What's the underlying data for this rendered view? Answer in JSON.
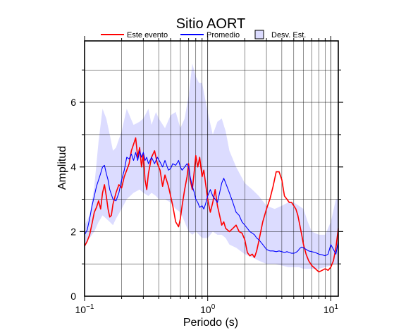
{
  "chart_data": {
    "type": "line",
    "title": "Sitio AORT",
    "xlabel": "Periodo (s)",
    "ylabel": "Amplitud",
    "x_scale": "log",
    "xlim": [
      0.1,
      11.5
    ],
    "ylim": [
      0,
      7.9
    ],
    "x_ticks": [
      {
        "base": "10",
        "exp": "−1",
        "value": 0.1
      },
      {
        "base": "10",
        "exp": "0",
        "value": 1
      },
      {
        "base": "10",
        "exp": "1",
        "value": 10
      }
    ],
    "y_ticks": [
      {
        "label": "0",
        "value": 0
      },
      {
        "label": "2",
        "value": 2
      },
      {
        "label": "4",
        "value": 4
      },
      {
        "label": "6",
        "value": 6
      }
    ],
    "grid": true,
    "legend_position": "top",
    "legend": [
      {
        "label": "Este evento",
        "kind": "line",
        "color": "#ff0000"
      },
      {
        "label": "Promedio",
        "kind": "line",
        "color": "#0000ff"
      },
      {
        "label": "Desv. Est.",
        "kind": "box",
        "color": "#dcdcff"
      }
    ],
    "series": [
      {
        "name": "Este evento",
        "color": "#ff0000",
        "points": [
          [
            0.1,
            1.55
          ],
          [
            0.105,
            1.7
          ],
          [
            0.11,
            1.9
          ],
          [
            0.115,
            2.25
          ],
          [
            0.12,
            2.6
          ],
          [
            0.125,
            2.75
          ],
          [
            0.13,
            2.95
          ],
          [
            0.135,
            2.7
          ],
          [
            0.14,
            3.2
          ],
          [
            0.145,
            3.45
          ],
          [
            0.15,
            3.1
          ],
          [
            0.155,
            2.7
          ],
          [
            0.16,
            2.45
          ],
          [
            0.165,
            2.5
          ],
          [
            0.17,
            2.85
          ],
          [
            0.18,
            3.2
          ],
          [
            0.19,
            3.45
          ],
          [
            0.2,
            3.35
          ],
          [
            0.21,
            3.7
          ],
          [
            0.22,
            3.9
          ],
          [
            0.23,
            4.1
          ],
          [
            0.24,
            4.5
          ],
          [
            0.25,
            4.7
          ],
          [
            0.26,
            4.9
          ],
          [
            0.27,
            4.3
          ],
          [
            0.28,
            4.6
          ],
          [
            0.29,
            4.0
          ],
          [
            0.3,
            4.4
          ],
          [
            0.31,
            3.6
          ],
          [
            0.32,
            3.3
          ],
          [
            0.33,
            3.8
          ],
          [
            0.35,
            4.3
          ],
          [
            0.37,
            4.5
          ],
          [
            0.39,
            4.1
          ],
          [
            0.41,
            3.9
          ],
          [
            0.43,
            3.4
          ],
          [
            0.45,
            3.75
          ],
          [
            0.48,
            3.4
          ],
          [
            0.5,
            3.1
          ],
          [
            0.52,
            2.8
          ],
          [
            0.55,
            2.3
          ],
          [
            0.58,
            2.15
          ],
          [
            0.6,
            2.4
          ],
          [
            0.62,
            2.8
          ],
          [
            0.65,
            3.3
          ],
          [
            0.68,
            3.7
          ],
          [
            0.7,
            4.1
          ],
          [
            0.72,
            3.6
          ],
          [
            0.75,
            3.3
          ],
          [
            0.78,
            3.9
          ],
          [
            0.8,
            4.35
          ],
          [
            0.83,
            4.0
          ],
          [
            0.86,
            4.3
          ],
          [
            0.9,
            3.7
          ],
          [
            0.93,
            3.9
          ],
          [
            0.96,
            3.5
          ],
          [
            1.0,
            3.0
          ],
          [
            1.05,
            2.6
          ],
          [
            1.1,
            2.9
          ],
          [
            1.15,
            3.3
          ],
          [
            1.2,
            2.8
          ],
          [
            1.25,
            2.5
          ],
          [
            1.3,
            2.2
          ],
          [
            1.35,
            2.3
          ],
          [
            1.4,
            2.1
          ],
          [
            1.5,
            2.0
          ],
          [
            1.6,
            2.1
          ],
          [
            1.7,
            2.2
          ],
          [
            1.8,
            2.0
          ],
          [
            1.9,
            1.95
          ],
          [
            2.0,
            1.75
          ],
          [
            2.1,
            1.35
          ],
          [
            2.2,
            1.25
          ],
          [
            2.3,
            1.3
          ],
          [
            2.4,
            1.2
          ],
          [
            2.5,
            1.4
          ],
          [
            2.6,
            1.7
          ],
          [
            2.8,
            2.3
          ],
          [
            3.0,
            2.7
          ],
          [
            3.2,
            3.0
          ],
          [
            3.4,
            3.4
          ],
          [
            3.6,
            3.85
          ],
          [
            3.8,
            3.85
          ],
          [
            4.0,
            3.6
          ],
          [
            4.2,
            3.1
          ],
          [
            4.4,
            3.0
          ],
          [
            4.6,
            2.9
          ],
          [
            4.8,
            2.9
          ],
          [
            5.0,
            2.8
          ],
          [
            5.2,
            2.7
          ],
          [
            5.4,
            2.5
          ],
          [
            5.6,
            2.2
          ],
          [
            5.8,
            1.9
          ],
          [
            6.0,
            1.6
          ],
          [
            6.3,
            1.3
          ],
          [
            6.6,
            1.1
          ],
          [
            7.0,
            0.95
          ],
          [
            7.5,
            0.85
          ],
          [
            8.0,
            0.75
          ],
          [
            8.5,
            0.8
          ],
          [
            9.0,
            0.85
          ],
          [
            9.5,
            0.8
          ],
          [
            10.0,
            0.9
          ],
          [
            10.5,
            1.1
          ],
          [
            11.0,
            1.5
          ],
          [
            11.5,
            2.1
          ]
        ]
      },
      {
        "name": "Promedio",
        "color": "#0000ff",
        "points": [
          [
            0.1,
            1.9
          ],
          [
            0.105,
            2.05
          ],
          [
            0.11,
            2.4
          ],
          [
            0.115,
            2.8
          ],
          [
            0.12,
            3.1
          ],
          [
            0.125,
            3.4
          ],
          [
            0.13,
            3.6
          ],
          [
            0.135,
            3.8
          ],
          [
            0.14,
            4.0
          ],
          [
            0.145,
            4.05
          ],
          [
            0.15,
            3.8
          ],
          [
            0.155,
            3.6
          ],
          [
            0.16,
            3.3
          ],
          [
            0.17,
            3.0
          ],
          [
            0.18,
            2.95
          ],
          [
            0.19,
            3.2
          ],
          [
            0.2,
            3.6
          ],
          [
            0.21,
            3.9
          ],
          [
            0.22,
            4.3
          ],
          [
            0.23,
            4.25
          ],
          [
            0.24,
            4.4
          ],
          [
            0.25,
            4.2
          ],
          [
            0.26,
            4.45
          ],
          [
            0.27,
            4.2
          ],
          [
            0.28,
            4.5
          ],
          [
            0.29,
            4.3
          ],
          [
            0.3,
            4.45
          ],
          [
            0.31,
            4.2
          ],
          [
            0.32,
            4.3
          ],
          [
            0.33,
            4.1
          ],
          [
            0.35,
            4.3
          ],
          [
            0.37,
            4.1
          ],
          [
            0.39,
            4.3
          ],
          [
            0.41,
            4.15
          ],
          [
            0.43,
            4.0
          ],
          [
            0.45,
            4.2
          ],
          [
            0.48,
            3.9
          ],
          [
            0.5,
            3.95
          ],
          [
            0.52,
            4.1
          ],
          [
            0.55,
            4.05
          ],
          [
            0.58,
            4.2
          ],
          [
            0.6,
            4.0
          ],
          [
            0.62,
            3.9
          ],
          [
            0.65,
            4.0
          ],
          [
            0.68,
            4.1
          ],
          [
            0.7,
            4.0
          ],
          [
            0.72,
            3.7
          ],
          [
            0.75,
            3.4
          ],
          [
            0.78,
            3.2
          ],
          [
            0.8,
            3.0
          ],
          [
            0.83,
            2.9
          ],
          [
            0.86,
            2.75
          ],
          [
            0.9,
            2.8
          ],
          [
            0.93,
            2.7
          ],
          [
            0.96,
            2.85
          ],
          [
            1.0,
            3.1
          ],
          [
            1.05,
            3.3
          ],
          [
            1.1,
            3.1
          ],
          [
            1.15,
            3.0
          ],
          [
            1.2,
            2.9
          ],
          [
            1.25,
            3.2
          ],
          [
            1.3,
            3.5
          ],
          [
            1.35,
            3.65
          ],
          [
            1.4,
            3.5
          ],
          [
            1.5,
            3.2
          ],
          [
            1.6,
            2.9
          ],
          [
            1.7,
            2.6
          ],
          [
            1.8,
            2.5
          ],
          [
            1.9,
            2.3
          ],
          [
            2.0,
            2.2
          ],
          [
            2.1,
            2.1
          ],
          [
            2.2,
            2.0
          ],
          [
            2.3,
            1.95
          ],
          [
            2.4,
            1.9
          ],
          [
            2.5,
            1.8
          ],
          [
            2.6,
            1.75
          ],
          [
            2.8,
            1.6
          ],
          [
            3.0,
            1.45
          ],
          [
            3.2,
            1.4
          ],
          [
            3.4,
            1.4
          ],
          [
            3.6,
            1.38
          ],
          [
            3.8,
            1.4
          ],
          [
            4.0,
            1.38
          ],
          [
            4.2,
            1.35
          ],
          [
            4.4,
            1.38
          ],
          [
            4.6,
            1.35
          ],
          [
            4.8,
            1.33
          ],
          [
            5.0,
            1.33
          ],
          [
            5.2,
            1.35
          ],
          [
            5.4,
            1.4
          ],
          [
            5.6,
            1.48
          ],
          [
            5.8,
            1.52
          ],
          [
            6.0,
            1.5
          ],
          [
            6.3,
            1.45
          ],
          [
            6.6,
            1.4
          ],
          [
            7.0,
            1.38
          ],
          [
            7.5,
            1.35
          ],
          [
            8.0,
            1.3
          ],
          [
            8.5,
            1.28
          ],
          [
            9.0,
            1.25
          ],
          [
            9.5,
            1.3
          ],
          [
            10.0,
            1.6
          ],
          [
            10.5,
            1.45
          ],
          [
            11.0,
            1.3
          ],
          [
            11.5,
            1.7
          ]
        ]
      }
    ],
    "band": {
      "name": "Desv. Est.",
      "color": "#dcdcff",
      "upper": [
        [
          0.1,
          2.2
        ],
        [
          0.11,
          2.5
        ],
        [
          0.12,
          3.4
        ],
        [
          0.13,
          4.8
        ],
        [
          0.14,
          5.8
        ],
        [
          0.15,
          5.5
        ],
        [
          0.16,
          5.0
        ],
        [
          0.17,
          4.5
        ],
        [
          0.18,
          4.6
        ],
        [
          0.2,
          5.1
        ],
        [
          0.22,
          5.8
        ],
        [
          0.25,
          5.3
        ],
        [
          0.28,
          5.4
        ],
        [
          0.3,
          5.5
        ],
        [
          0.33,
          5.8
        ],
        [
          0.35,
          5.3
        ],
        [
          0.38,
          5.7
        ],
        [
          0.4,
          5.5
        ],
        [
          0.45,
          5.2
        ],
        [
          0.5,
          5.6
        ],
        [
          0.55,
          5.7
        ],
        [
          0.6,
          5.2
        ],
        [
          0.65,
          5.5
        ],
        [
          0.7,
          6.2
        ],
        [
          0.75,
          7.2
        ],
        [
          0.8,
          6.8
        ],
        [
          0.85,
          6.6
        ],
        [
          0.9,
          6.6
        ],
        [
          1.0,
          5.7
        ],
        [
          1.1,
          5.0
        ],
        [
          1.2,
          5.4
        ],
        [
          1.3,
          5.5
        ],
        [
          1.4,
          5.1
        ],
        [
          1.5,
          4.5
        ],
        [
          1.7,
          4.0
        ],
        [
          2.0,
          3.5
        ],
        [
          2.3,
          3.3
        ],
        [
          2.6,
          3.1
        ],
        [
          3.0,
          2.8
        ],
        [
          3.5,
          2.7
        ],
        [
          4.0,
          2.8
        ],
        [
          4.5,
          2.9
        ],
        [
          5.0,
          2.9
        ],
        [
          5.5,
          2.8
        ],
        [
          6.0,
          2.7
        ],
        [
          6.5,
          2.3
        ],
        [
          7.0,
          2.0
        ],
        [
          8.0,
          1.9
        ],
        [
          9.0,
          1.9
        ],
        [
          10.0,
          2.3
        ],
        [
          11.0,
          3.0
        ],
        [
          11.5,
          3.0
        ]
      ],
      "lower": [
        [
          0.1,
          1.6
        ],
        [
          0.11,
          1.8
        ],
        [
          0.12,
          2.0
        ],
        [
          0.13,
          2.3
        ],
        [
          0.14,
          2.5
        ],
        [
          0.15,
          2.4
        ],
        [
          0.16,
          2.3
        ],
        [
          0.17,
          2.2
        ],
        [
          0.18,
          2.4
        ],
        [
          0.2,
          2.7
        ],
        [
          0.22,
          3.0
        ],
        [
          0.25,
          3.2
        ],
        [
          0.28,
          3.3
        ],
        [
          0.3,
          3.2
        ],
        [
          0.33,
          3.1
        ],
        [
          0.35,
          3.2
        ],
        [
          0.38,
          3.1
        ],
        [
          0.4,
          3.0
        ],
        [
          0.45,
          3.0
        ],
        [
          0.5,
          2.9
        ],
        [
          0.55,
          2.7
        ],
        [
          0.6,
          2.6
        ],
        [
          0.65,
          2.3
        ],
        [
          0.7,
          2.0
        ],
        [
          0.75,
          1.9
        ],
        [
          0.8,
          2.0
        ],
        [
          0.85,
          1.9
        ],
        [
          0.9,
          1.8
        ],
        [
          1.0,
          1.8
        ],
        [
          1.1,
          2.0
        ],
        [
          1.2,
          1.9
        ],
        [
          1.3,
          1.9
        ],
        [
          1.4,
          1.8
        ],
        [
          1.5,
          1.6
        ],
        [
          1.7,
          1.5
        ],
        [
          2.0,
          1.3
        ],
        [
          2.3,
          1.2
        ],
        [
          2.6,
          1.1
        ],
        [
          3.0,
          1.0
        ],
        [
          3.5,
          1.0
        ],
        [
          4.0,
          0.95
        ],
        [
          4.5,
          0.9
        ],
        [
          5.0,
          0.9
        ],
        [
          5.5,
          0.9
        ],
        [
          6.0,
          0.85
        ],
        [
          6.5,
          0.85
        ],
        [
          7.0,
          0.85
        ],
        [
          8.0,
          0.85
        ],
        [
          9.0,
          0.9
        ],
        [
          10.0,
          0.95
        ],
        [
          11.0,
          1.0
        ],
        [
          11.5,
          1.0
        ]
      ]
    }
  }
}
